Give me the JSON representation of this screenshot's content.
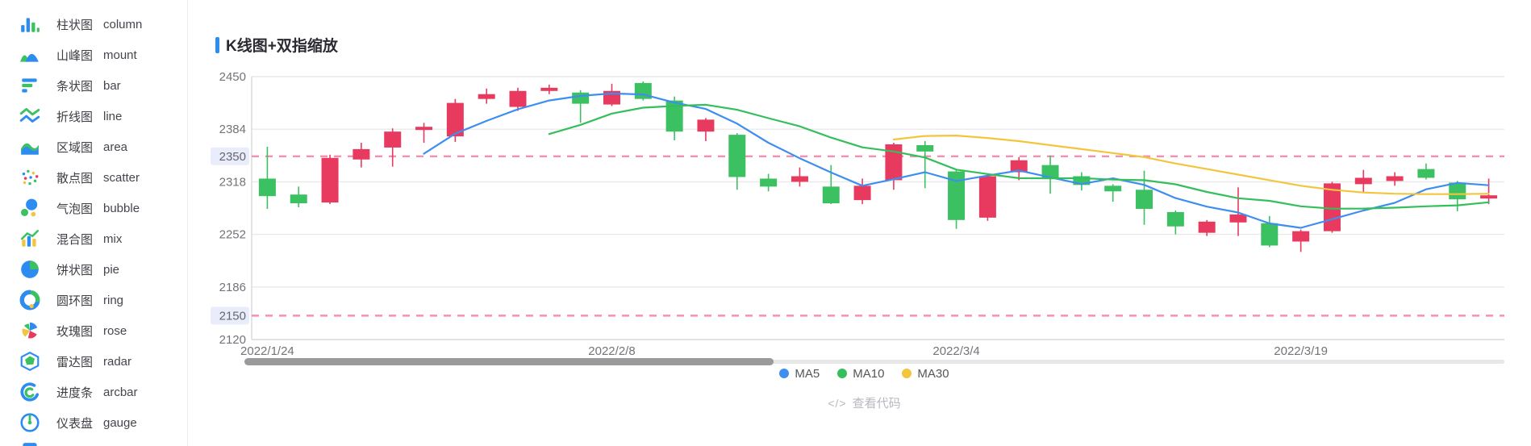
{
  "sidebar": {
    "items": [
      {
        "zh": "柱状图",
        "en": "column",
        "icon": "column-chart-icon"
      },
      {
        "zh": "山峰图",
        "en": "mount",
        "icon": "mount-chart-icon"
      },
      {
        "zh": "条状图",
        "en": "bar",
        "icon": "bar-chart-icon"
      },
      {
        "zh": "折线图",
        "en": "line",
        "icon": "line-chart-icon"
      },
      {
        "zh": "区域图",
        "en": "area",
        "icon": "area-chart-icon"
      },
      {
        "zh": "散点图",
        "en": "scatter",
        "icon": "scatter-chart-icon"
      },
      {
        "zh": "气泡图",
        "en": "bubble",
        "icon": "bubble-chart-icon"
      },
      {
        "zh": "混合图",
        "en": "mix",
        "icon": "mix-chart-icon"
      },
      {
        "zh": "饼状图",
        "en": "pie",
        "icon": "pie-chart-icon"
      },
      {
        "zh": "圆环图",
        "en": "ring",
        "icon": "ring-chart-icon"
      },
      {
        "zh": "玫瑰图",
        "en": "rose",
        "icon": "rose-chart-icon"
      },
      {
        "zh": "雷达图",
        "en": "radar",
        "icon": "radar-chart-icon"
      },
      {
        "zh": "进度条",
        "en": "arcbar",
        "icon": "arcbar-chart-icon"
      },
      {
        "zh": "仪表盘",
        "en": "gauge",
        "icon": "gauge-chart-icon"
      }
    ]
  },
  "chart": {
    "title": "K线图+双指缩放",
    "footer_icon": "</>",
    "footer_link": "查看代码",
    "legend": [
      {
        "label": "MA5",
        "color": "#3e8ef0"
      },
      {
        "label": "MA10",
        "color": "#35bf5c"
      },
      {
        "label": "MA30",
        "color": "#f3c53d"
      }
    ]
  },
  "chart_data": {
    "type": "candlestick",
    "title": "K线图+双指缩放",
    "ylim": [
      2120,
      2450
    ],
    "y_ticks": [
      2450,
      2384,
      2318,
      2252,
      2186,
      2120
    ],
    "alarm_lines": [
      {
        "value": 2350,
        "label": "2350"
      },
      {
        "value": 2150,
        "label": "2150"
      }
    ],
    "x_labels": [
      {
        "label": "2022/1/24",
        "index": 0
      },
      {
        "label": "2022/2/8",
        "index": 11
      },
      {
        "label": "2022/3/4",
        "index": 22
      },
      {
        "label": "2022/3/19",
        "index": 33
      }
    ],
    "grid": true,
    "legend_position": "bottom",
    "candles_ohlc_low_high": [
      [
        2322,
        2300,
        2284,
        2362
      ],
      [
        2302,
        2291,
        2286,
        2312
      ],
      [
        2292,
        2348,
        2290,
        2352
      ],
      [
        2346,
        2359,
        2336,
        2367
      ],
      [
        2361,
        2381,
        2337,
        2385
      ],
      [
        2383,
        2387,
        2367,
        2392
      ],
      [
        2375,
        2417,
        2368,
        2422
      ],
      [
        2422,
        2428,
        2416,
        2435
      ],
      [
        2412,
        2432,
        2407,
        2436
      ],
      [
        2432,
        2436,
        2428,
        2440
      ],
      [
        2430,
        2416,
        2392,
        2433
      ],
      [
        2415,
        2432,
        2413,
        2441
      ],
      [
        2442,
        2422,
        2420,
        2444
      ],
      [
        2420,
        2381,
        2370,
        2425
      ],
      [
        2381,
        2396,
        2369,
        2398
      ],
      [
        2377,
        2324,
        2308,
        2379
      ],
      [
        2322,
        2312,
        2306,
        2328
      ],
      [
        2318,
        2325,
        2312,
        2336
      ],
      [
        2312,
        2291,
        2290,
        2339
      ],
      [
        2295,
        2313,
        2290,
        2322
      ],
      [
        2320,
        2365,
        2308,
        2367
      ],
      [
        2364,
        2356,
        2310,
        2369
      ],
      [
        2331,
        2270,
        2259,
        2333
      ],
      [
        2273,
        2325,
        2269,
        2327
      ],
      [
        2330,
        2345,
        2320,
        2349
      ],
      [
        2339,
        2322,
        2303,
        2351
      ],
      [
        2325,
        2314,
        2307,
        2330
      ],
      [
        2313,
        2306,
        2293,
        2315
      ],
      [
        2308,
        2284,
        2264,
        2332
      ],
      [
        2280,
        2262,
        2252,
        2282
      ],
      [
        2254,
        2268,
        2250,
        2270
      ],
      [
        2267,
        2277,
        2250,
        2311
      ],
      [
        2266,
        2238,
        2236,
        2275
      ],
      [
        2243,
        2256,
        2230,
        2258
      ],
      [
        2256,
        2316,
        2254,
        2318
      ],
      [
        2315,
        2323,
        2305,
        2333
      ],
      [
        2319,
        2325,
        2313,
        2330
      ],
      [
        2334,
        2323,
        2321,
        2341
      ],
      [
        2317,
        2296,
        2281,
        2319
      ],
      [
        2297,
        2301,
        2290,
        2322
      ]
    ],
    "series": [
      {
        "name": "MA5",
        "color": "#3e8ef0",
        "values": [
          null,
          null,
          null,
          null,
          null,
          2353.2,
          2378.4,
          2394.4,
          2409,
          2420,
          2425.8,
          2428.8,
          2427.6,
          2417.4,
          2409.4,
          2391,
          2367,
          2347.6,
          2329.6,
          2313,
          2321.2,
          2330,
          2319,
          2325.8,
          2332.2,
          2323.6,
          2315.2,
          2322.4,
          2314.2,
          2297.6,
          2286.8,
          2279.4,
          2265.8,
          2260.2,
          2271,
          2282,
          2291.6,
          2308.6,
          2316.6,
          2313.6
        ]
      },
      {
        "name": "MA10",
        "color": "#35bf5c",
        "values": [
          null,
          null,
          null,
          null,
          null,
          null,
          null,
          null,
          null,
          2377.9,
          2389.5,
          2403.6,
          2411,
          2413.2,
          2414.7,
          2408.4,
          2397.9,
          2387.6,
          2373.5,
          2361.2,
          2356.1,
          2348.5,
          2333.3,
          2327.7,
          2322.6,
          2322.4,
          2322.6,
          2320.7,
          2320,
          2314.9,
          2305.2,
          2297.3,
          2294.1,
          2287.2,
          2284.3,
          2284.4,
          2285.5,
          2287.2,
          2288.4,
          2292.3
        ]
      },
      {
        "name": "MA30",
        "color": "#f3c53d",
        "values": [
          null,
          null,
          null,
          null,
          null,
          null,
          null,
          null,
          null,
          null,
          null,
          null,
          null,
          null,
          null,
          null,
          null,
          null,
          null,
          null,
          2371,
          2375.5,
          2376,
          2373,
          2369,
          2364,
          2359,
          2354,
          2349,
          2341,
          2334,
          2327,
          2320,
          2313,
          2308,
          2304.5,
          2303,
          2302.5,
          2302.5,
          2303
        ]
      }
    ],
    "colors": {
      "up": "#e8395e",
      "down": "#3cc162",
      "alarm": "#f78fb0",
      "alarm_label_bg": "#e9ecfa",
      "grid": "#e9e9e9",
      "axis": "#d9d9d9",
      "tick_text": "#73737a",
      "scroll_track": "#e7e7e7",
      "scroll_thumb": "#9a9a9a"
    },
    "scrollbar": {
      "thumb_start_frac": 0.0,
      "thumb_end_frac": 0.42
    }
  }
}
